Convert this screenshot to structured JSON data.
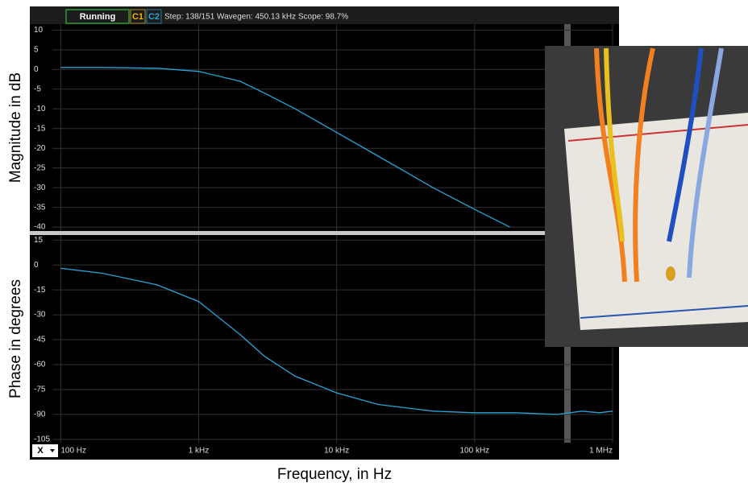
{
  "toolbar": {
    "status": "Running",
    "channel1": "C1",
    "channel2": "C2",
    "info": "Step: 138/151  Wavegen: 450.13 kHz  Scope: 98.7%",
    "x_selector": "X"
  },
  "chart_data": [
    {
      "type": "line",
      "ylabel": "Magnitude in dB",
      "xscale": "log",
      "xlim": [
        87,
        1000000
      ],
      "ylim": [
        -41,
        11.5
      ],
      "yticks": [
        10,
        5,
        0,
        -5,
        -10,
        -15,
        -20,
        -25,
        -30,
        -35,
        -40
      ],
      "grid": true,
      "color": "#2aa3d8",
      "x": [
        100,
        200,
        500,
        1000,
        2000,
        3000,
        5000,
        10000,
        20000,
        50000,
        100000,
        180000
      ],
      "values": [
        0.5,
        0.5,
        0.3,
        -0.5,
        -3,
        -6,
        -10,
        -16,
        -22,
        -30,
        -35.5,
        -40
      ]
    },
    {
      "type": "line",
      "ylabel": "Phase in degrees",
      "xlabel": "Frequency, in Hz",
      "xscale": "log",
      "xlim": [
        87,
        1000000
      ],
      "ylim": [
        -107,
        18
      ],
      "yticks": [
        15,
        0,
        -15,
        -30,
        -45,
        -60,
        -75,
        -90,
        -105
      ],
      "grid": true,
      "color": "#2aa3d8",
      "xticks": [
        {
          "value": 100,
          "label": "100 Hz"
        },
        {
          "value": 1000,
          "label": "1 kHz"
        },
        {
          "value": 10000,
          "label": "10 kHz"
        },
        {
          "value": 100000,
          "label": "100 kHz"
        },
        {
          "value": 1000000,
          "label": "1 MHz"
        }
      ],
      "x": [
        100,
        200,
        500,
        1000,
        2000,
        3000,
        5000,
        10000,
        20000,
        50000,
        100000,
        200000,
        400000,
        600000,
        800000,
        1000000
      ],
      "values": [
        -2,
        -5,
        -12,
        -22,
        -42,
        -55,
        -67,
        -77,
        -84,
        -88,
        -89,
        -89,
        -90,
        -88,
        -89,
        -88
      ]
    }
  ]
}
